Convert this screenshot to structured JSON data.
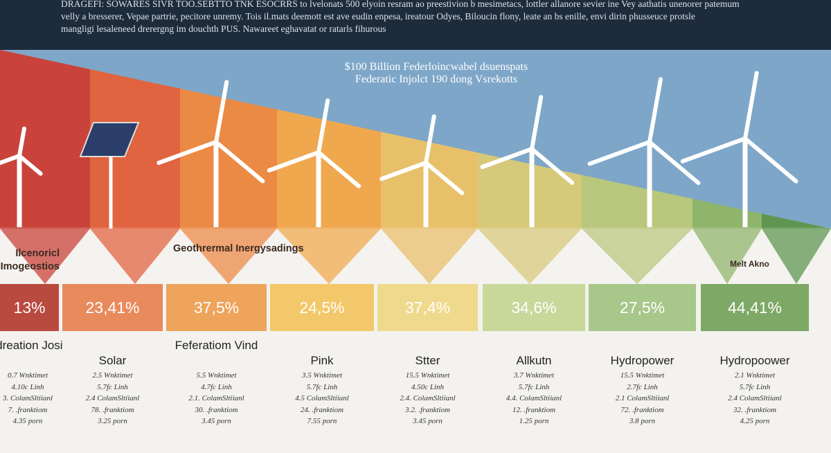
{
  "header": {
    "lines": [
      "DRAGEFI: SOWARES SIVR TOO.SEBTTO TNK ESOCRRS to lvelonats 500 elyoin resram ao preestivion b mesimetacs, lottler allanore sevier ine Vey aathatis unenorer patemum",
      "velly a bresserer, Vepae partrie, pecitore unremy. Tois il.mats deemott est ave eudin enpesa, ireatour Odyes, Biloucin flony, leate an bs enille, envi dirin phusseuce protsle",
      "mangligi lesaleneed drerergng im douchth PUS. Nawareet eghavatat or ratarls fihurous"
    ]
  },
  "title": {
    "lines": [
      "$100 Billion Federloincwabel dsuenspats",
      "Federatic Injolct 190 dong Vsrekotts"
    ]
  },
  "bands": [
    "Ilcenoricl Imogeostios",
    "Geothrermal Inergysadings",
    "Melt Akno"
  ],
  "columns": [
    {
      "value": "13%",
      "name": "Idreation Josi",
      "details": [
        "0.7 Wnktimet",
        "4.10c Linh",
        "3. ColamSltiianl",
        "7. .franktiom",
        "4.35 porn"
      ]
    },
    {
      "value": "23,41%",
      "name": "Solar",
      "details": [
        "2.5 Wnktimet",
        "5.7fc Linh",
        "2.4 ColamSltiianl",
        "78. .franktiom",
        "3.25 porn"
      ]
    },
    {
      "value": "37,5%",
      "name": "Feferatiom Vind",
      "details": [
        "5.5 Wnktimet",
        "4.7fc Linh",
        "2.1. ColamSltiianl",
        "30. .franktiom",
        "3.45 porn"
      ]
    },
    {
      "value": "24,5%",
      "name": "Pink",
      "details": [
        "3.5 Wnktimet",
        "5.7fc Linh",
        "4.5 ColamSltiianl",
        "24. .franktiom",
        "7.55 porn"
      ]
    },
    {
      "value": "37,4%",
      "name": "Stter",
      "details": [
        "15.5 Wnktimet",
        "4.50c Linh",
        "2.4. ColamSltiianl",
        "3.2. .franktiom",
        "3.45 porn"
      ]
    },
    {
      "value": "34,6%",
      "name": "Allkutn",
      "details": [
        "3.7 Wnktimet",
        "5.7fc Linh",
        "4.4. ColamSltiianl",
        "12. .franktiom",
        "1.25 porn"
      ]
    },
    {
      "value": "27,5%",
      "name": "Hydropower",
      "details": [
        "15.5 Wnktimet",
        "2.7fc Linh",
        "2.1 ColamSltiianl",
        "72. .franktiom",
        "3.8 porn"
      ]
    },
    {
      "value": "44,41%",
      "name": "Hydropoower",
      "details": [
        "2.1 Wnktimet",
        "5.7fc Linh",
        "2.4 ColamSltiianl",
        "32. .franktiom",
        "4.25 porn"
      ]
    }
  ]
}
